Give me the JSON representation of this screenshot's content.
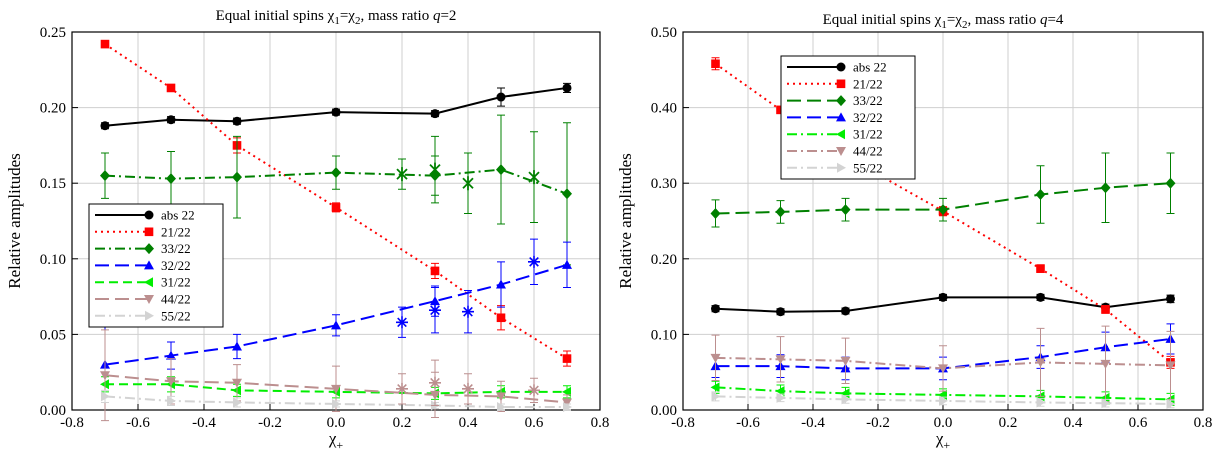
{
  "chart_data": [
    {
      "type": "line",
      "title": "Equal initial spins χ1=χ2, mass ratio q=2",
      "title_parts": {
        "pre": "Equal initial spins ",
        "chi1": "χ",
        "sub1": "1",
        "eq": "=",
        "chi2": "χ",
        "sub2": "2",
        "mid": ", mass ratio ",
        "qvar": "q",
        "post": "=2"
      },
      "xlabel": {
        "symbol": "χ",
        "sub": "+"
      },
      "ylabel": "Relative amplitudes",
      "xlim": [
        -0.8,
        0.8
      ],
      "ylim": [
        0,
        0.25
      ],
      "xticks": [
        "-0.8",
        "-0.6",
        "-0.4",
        "-0.2",
        "0.0",
        "0.2",
        "0.4",
        "0.6",
        "0.8"
      ],
      "xtick_values": [
        -0.8,
        -0.6,
        -0.4,
        -0.2,
        0.0,
        0.2,
        0.4,
        0.6,
        0.8
      ],
      "yticks": [
        "0.00",
        "0.05",
        "0.10",
        "0.15",
        "0.20",
        "0.25"
      ],
      "ytick_values": [
        0,
        0.05,
        0.1,
        0.15,
        0.2,
        0.25
      ],
      "grid": true,
      "legend_placement": "center-left",
      "series": [
        {
          "name": "abs 22",
          "color": "#000000",
          "marker": "circle",
          "dash": "solid",
          "x": [
            -0.7,
            -0.5,
            -0.3,
            0.0,
            0.3,
            0.5,
            0.7
          ],
          "y": [
            0.188,
            0.192,
            0.191,
            0.197,
            0.196,
            0.207,
            0.213
          ],
          "err": [
            0.002,
            0.002,
            0.002,
            0.002,
            0.002,
            0.006,
            0.003
          ]
        },
        {
          "name": "21/22",
          "color": "#ff0000",
          "marker": "square",
          "dash": "dotted",
          "x": [
            -0.7,
            -0.5,
            -0.3,
            0.0,
            0.3,
            0.5,
            0.7
          ],
          "y": [
            0.242,
            0.213,
            0.175,
            0.134,
            0.092,
            0.061,
            0.034
          ],
          "err": [
            0.002,
            0.002,
            0.005,
            0.003,
            0.005,
            0.008,
            0.005
          ]
        },
        {
          "name": "33/22",
          "color": "#008000",
          "marker": "diamond",
          "dash": "dashdot",
          "x": [
            -0.7,
            -0.5,
            -0.3,
            0.0,
            0.3,
            0.5,
            0.7
          ],
          "y": [
            0.155,
            0.153,
            0.154,
            0.157,
            0.155,
            0.159,
            0.143
          ],
          "err": [
            0.015,
            0.018,
            0.027,
            0.011,
            0.013,
            0.036,
            0.047
          ]
        },
        {
          "name": "32/22",
          "color": "#0000ff",
          "marker": "triangle-up",
          "dash": "longdash",
          "x": [
            -0.7,
            -0.5,
            -0.3,
            0.0,
            0.3,
            0.5,
            0.7
          ],
          "y": [
            0.03,
            0.036,
            0.042,
            0.056,
            0.072,
            0.083,
            0.096
          ],
          "err": [
            0.025,
            0.009,
            0.008,
            0.007,
            0.01,
            0.015,
            0.015
          ]
        },
        {
          "name": "31/22",
          "color": "#00ee00",
          "marker": "triangle-left",
          "dash": "dashed",
          "x": [
            -0.7,
            -0.5,
            -0.3,
            0.0,
            0.3,
            0.5,
            0.7
          ],
          "y": [
            0.017,
            0.017,
            0.013,
            0.012,
            0.011,
            0.012,
            0.012
          ],
          "err": [
            0.005,
            0.005,
            0.004,
            0.004,
            0.004,
            0.004,
            0.004
          ]
        },
        {
          "name": "44/22",
          "color": "#bc8f8f",
          "marker": "triangle-down",
          "dash": "longdash",
          "x": [
            -0.7,
            -0.5,
            -0.3,
            0.0,
            0.3,
            0.5,
            0.7
          ],
          "y": [
            0.023,
            0.019,
            0.018,
            0.014,
            0.01,
            0.009,
            0.005
          ],
          "err": [
            0.03,
            0.015,
            0.012,
            0.015,
            0.015,
            0.01,
            0.005
          ]
        },
        {
          "name": "55/22",
          "color": "#d3d3d3",
          "marker": "triangle-right",
          "dash": "dashdot",
          "x": [
            -0.7,
            -0.5,
            -0.3,
            0.0,
            0.3,
            0.5,
            0.7
          ],
          "y": [
            0.009,
            0.006,
            0.005,
            0.004,
            0.003,
            0.002,
            0.002
          ],
          "err": [
            0.004,
            0.003,
            0.003,
            0.002,
            0.002,
            0.002,
            0.002
          ]
        }
      ],
      "extra_points": [
        {
          "color": "#008000",
          "marker": "x-diamond",
          "x": [
            0.2,
            0.3,
            0.4,
            0.6
          ],
          "y": [
            0.156,
            0.159,
            0.15,
            0.154
          ],
          "err": [
            0.01,
            0.022,
            0.02,
            0.03
          ]
        },
        {
          "color": "#0000ff",
          "marker": "asterisk",
          "x": [
            0.2,
            0.3,
            0.4,
            0.6
          ],
          "y": [
            0.058,
            0.066,
            0.065,
            0.098
          ],
          "err": [
            0.01,
            0.015,
            0.014,
            0.015
          ]
        },
        {
          "color": "#bc8f8f",
          "marker": "asterisk",
          "x": [
            0.2,
            0.3,
            0.4,
            0.6
          ],
          "y": [
            0.014,
            0.018,
            0.014,
            0.013
          ],
          "err": [
            0.01,
            0.015,
            0.01,
            0.008
          ]
        }
      ]
    },
    {
      "type": "line",
      "title": "Equal initial spins χ1=χ2, mass ratio q=4",
      "title_parts": {
        "pre": "Equal initial spins ",
        "chi1": "χ",
        "sub1": "1",
        "eq": "=",
        "chi2": "χ",
        "sub2": "2",
        "mid": ", mass ratio ",
        "qvar": "q",
        "post": "=4"
      },
      "xlabel": {
        "symbol": "χ",
        "sub": "+"
      },
      "ylabel": "Relative amplitudes",
      "xlim": [
        -0.8,
        0.8
      ],
      "ylim": [
        0,
        0.5
      ],
      "xticks": [
        "-0.8",
        "-0.6",
        "-0.4",
        "-0.2",
        "0.0",
        "0.2",
        "0.4",
        "0.6",
        "0.8"
      ],
      "xtick_values": [
        -0.8,
        -0.6,
        -0.4,
        -0.2,
        0.0,
        0.2,
        0.4,
        0.6,
        0.8
      ],
      "yticks": [
        "0.00",
        "0.10",
        "0.20",
        "0.30",
        "0.40",
        "0.50"
      ],
      "ytick_values": [
        0,
        0.1,
        0.2,
        0.3,
        0.4,
        0.5
      ],
      "grid": true,
      "legend_placement": "top-center",
      "series": [
        {
          "name": "abs 22",
          "color": "#000000",
          "marker": "circle",
          "dash": "solid",
          "x": [
            -0.7,
            -0.5,
            -0.3,
            0.0,
            0.3,
            0.5,
            0.7
          ],
          "y": [
            0.134,
            0.13,
            0.131,
            0.149,
            0.149,
            0.136,
            0.147
          ],
          "err": [
            0.004,
            0.004,
            0.004,
            0.004,
            0.004,
            0.004,
            0.005
          ]
        },
        {
          "name": "21/22",
          "color": "#ff0000",
          "marker": "square",
          "dash": "dotted",
          "x": [
            -0.7,
            -0.5,
            -0.3,
            0.0,
            0.3,
            0.5,
            0.7
          ],
          "y": [
            0.458,
            0.397,
            0.336,
            0.263,
            0.187,
            0.133,
            0.063
          ],
          "err": [
            0.008,
            0.004,
            0.005,
            0.006,
            0.005,
            0.005,
            0.008
          ]
        },
        {
          "name": "33/22",
          "color": "#008000",
          "marker": "diamond",
          "dash": "longdash",
          "x": [
            -0.7,
            -0.5,
            -0.3,
            0.0,
            0.3,
            0.5,
            0.7
          ],
          "y": [
            0.26,
            0.262,
            0.265,
            0.265,
            0.285,
            0.294,
            0.3
          ],
          "err": [
            0.018,
            0.015,
            0.015,
            0.015,
            0.038,
            0.046,
            0.04
          ]
        },
        {
          "name": "32/22",
          "color": "#0000ff",
          "marker": "triangle-up",
          "dash": "longdash",
          "x": [
            -0.7,
            -0.5,
            -0.3,
            0.0,
            0.3,
            0.5,
            0.7
          ],
          "y": [
            0.058,
            0.058,
            0.055,
            0.055,
            0.07,
            0.083,
            0.094
          ],
          "err": [
            0.015,
            0.015,
            0.015,
            0.015,
            0.015,
            0.02,
            0.02
          ]
        },
        {
          "name": "31/22",
          "color": "#00ee00",
          "marker": "triangle-left",
          "dash": "dashdot",
          "x": [
            -0.7,
            -0.5,
            -0.3,
            0.0,
            0.3,
            0.5,
            0.7
          ],
          "y": [
            0.03,
            0.025,
            0.022,
            0.02,
            0.018,
            0.016,
            0.014
          ],
          "err": [
            0.008,
            0.008,
            0.008,
            0.008,
            0.008,
            0.008,
            0.008
          ]
        },
        {
          "name": "44/22",
          "color": "#bc8f8f",
          "marker": "triangle-down",
          "dash": "dashdot",
          "x": [
            -0.7,
            -0.5,
            -0.3,
            0.0,
            0.3,
            0.5,
            0.7
          ],
          "y": [
            0.069,
            0.067,
            0.065,
            0.055,
            0.063,
            0.061,
            0.059
          ],
          "err": [
            0.03,
            0.03,
            0.03,
            0.03,
            0.045,
            0.05,
            0.045
          ]
        },
        {
          "name": "55/22",
          "color": "#d3d3d3",
          "marker": "triangle-right",
          "dash": "dashdot",
          "x": [
            -0.7,
            -0.5,
            -0.3,
            0.0,
            0.3,
            0.5,
            0.7
          ],
          "y": [
            0.018,
            0.016,
            0.014,
            0.012,
            0.01,
            0.009,
            0.008
          ],
          "err": [
            0.006,
            0.005,
            0.005,
            0.005,
            0.005,
            0.005,
            0.005
          ]
        }
      ],
      "extra_points": []
    }
  ]
}
